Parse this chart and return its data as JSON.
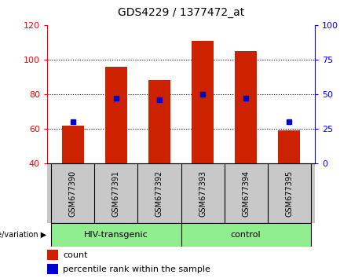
{
  "title": "GDS4229 / 1377472_at",
  "categories": [
    "GSM677390",
    "GSM677391",
    "GSM677392",
    "GSM677393",
    "GSM677394",
    "GSM677395"
  ],
  "bar_values": [
    62,
    96,
    88,
    111,
    105,
    59
  ],
  "percentile_values": [
    30,
    47,
    46,
    50,
    47,
    30
  ],
  "bar_color": "#cc2200",
  "percentile_color": "#0000cc",
  "ylim_left": [
    40,
    120
  ],
  "ylim_right": [
    0,
    100
  ],
  "yticks_left": [
    40,
    60,
    80,
    100,
    120
  ],
  "yticks_right": [
    0,
    25,
    50,
    75,
    100
  ],
  "groups": [
    {
      "label": "HIV-transgenic",
      "indices": [
        0,
        1,
        2
      ]
    },
    {
      "label": "control",
      "indices": [
        3,
        4,
        5
      ]
    }
  ],
  "group_label": "genotype/variation",
  "legend_count_label": "count",
  "legend_percentile_label": "percentile rank within the sample",
  "bar_width": 0.5,
  "tick_label_area_color": "#c8c8c8",
  "group_box_color": "#90ee90"
}
